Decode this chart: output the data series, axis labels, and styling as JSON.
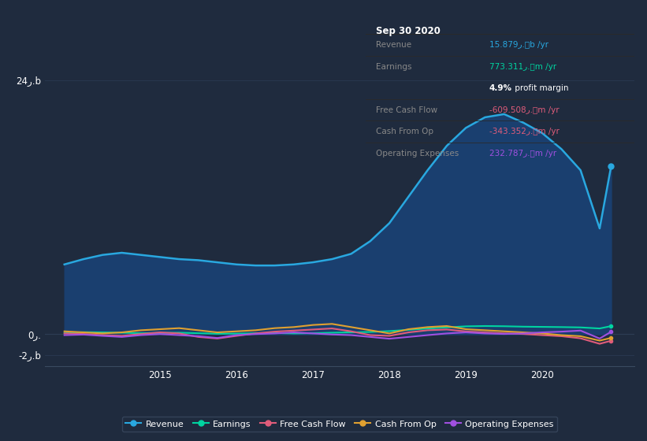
{
  "background_color": "#1f2b3e",
  "plot_bg_color": "#1f2b3e",
  "grid_color": "#2a3a52",
  "ylim": [
    -3000000000,
    27000000000
  ],
  "xlim": [
    2013.5,
    2021.2
  ],
  "xticks": [
    2015,
    2016,
    2017,
    2018,
    2019,
    2020
  ],
  "ytick_values": [
    -2000000000,
    0,
    24000000000
  ],
  "ytick_labels": [
    "-2ر.b",
    "0ر.",
    "24ر.b"
  ],
  "series": {
    "Revenue": {
      "color": "#29a8e0",
      "fill_color": "#1a3f6f",
      "linewidth": 1.8,
      "x": [
        2013.75,
        2014.0,
        2014.25,
        2014.5,
        2014.75,
        2015.0,
        2015.25,
        2015.5,
        2015.75,
        2016.0,
        2016.25,
        2016.5,
        2016.75,
        2017.0,
        2017.25,
        2017.5,
        2017.75,
        2018.0,
        2018.25,
        2018.5,
        2018.75,
        2019.0,
        2019.25,
        2019.5,
        2019.75,
        2020.0,
        2020.25,
        2020.5,
        2020.75,
        2020.9
      ],
      "y": [
        6600000000,
        7100000000,
        7500000000,
        7700000000,
        7500000000,
        7300000000,
        7100000000,
        7000000000,
        6800000000,
        6600000000,
        6500000000,
        6500000000,
        6600000000,
        6800000000,
        7100000000,
        7600000000,
        8800000000,
        10500000000,
        13000000000,
        15500000000,
        17800000000,
        19500000000,
        20500000000,
        20800000000,
        20000000000,
        19000000000,
        17500000000,
        15500000000,
        10000000000,
        15879000000
      ]
    },
    "Earnings": {
      "color": "#00d4a0",
      "linewidth": 1.5,
      "x": [
        2013.75,
        2014.0,
        2014.25,
        2014.5,
        2014.75,
        2015.0,
        2015.25,
        2015.5,
        2015.75,
        2016.0,
        2016.25,
        2016.5,
        2016.75,
        2017.0,
        2017.25,
        2017.5,
        2017.75,
        2018.0,
        2018.25,
        2018.5,
        2018.75,
        2019.0,
        2019.25,
        2019.5,
        2019.75,
        2020.0,
        2020.25,
        2020.5,
        2020.75,
        2020.9
      ],
      "y": [
        150000000,
        200000000,
        180000000,
        150000000,
        100000000,
        130000000,
        150000000,
        100000000,
        50000000,
        60000000,
        100000000,
        120000000,
        80000000,
        100000000,
        150000000,
        180000000,
        220000000,
        300000000,
        420000000,
        550000000,
        650000000,
        750000000,
        780000000,
        760000000,
        720000000,
        700000000,
        680000000,
        650000000,
        550000000,
        773311000
      ]
    },
    "Free Cash Flow": {
      "color": "#e05c7a",
      "linewidth": 1.5,
      "x": [
        2013.75,
        2014.0,
        2014.25,
        2014.5,
        2014.75,
        2015.0,
        2015.25,
        2015.5,
        2015.75,
        2016.0,
        2016.25,
        2016.5,
        2016.75,
        2017.0,
        2017.25,
        2017.5,
        2017.75,
        2018.0,
        2018.25,
        2018.5,
        2018.75,
        2019.0,
        2019.25,
        2019.5,
        2019.75,
        2020.0,
        2020.25,
        2020.5,
        2020.75,
        2020.9
      ],
      "y": [
        80000000,
        30000000,
        -80000000,
        -150000000,
        20000000,
        180000000,
        80000000,
        -250000000,
        -400000000,
        -150000000,
        80000000,
        250000000,
        350000000,
        450000000,
        550000000,
        280000000,
        -80000000,
        -150000000,
        180000000,
        380000000,
        450000000,
        270000000,
        170000000,
        80000000,
        30000000,
        -80000000,
        -180000000,
        -380000000,
        -900000000,
        -609508000
      ]
    },
    "Cash From Op": {
      "color": "#e0a030",
      "linewidth": 1.5,
      "x": [
        2013.75,
        2014.0,
        2014.25,
        2014.5,
        2014.75,
        2015.0,
        2015.25,
        2015.5,
        2015.75,
        2016.0,
        2016.25,
        2016.5,
        2016.75,
        2017.0,
        2017.25,
        2017.5,
        2017.75,
        2018.0,
        2018.25,
        2018.5,
        2018.75,
        2019.0,
        2019.25,
        2019.5,
        2019.75,
        2020.0,
        2020.25,
        2020.5,
        2020.75,
        2020.9
      ],
      "y": [
        280000000,
        180000000,
        80000000,
        180000000,
        380000000,
        480000000,
        580000000,
        380000000,
        180000000,
        280000000,
        380000000,
        580000000,
        680000000,
        880000000,
        980000000,
        680000000,
        380000000,
        80000000,
        480000000,
        680000000,
        780000000,
        480000000,
        380000000,
        280000000,
        180000000,
        80000000,
        -80000000,
        -180000000,
        -600000000,
        -343352000
      ]
    },
    "Operating Expenses": {
      "color": "#a050e0",
      "linewidth": 1.5,
      "x": [
        2013.75,
        2014.0,
        2014.25,
        2014.5,
        2014.75,
        2015.0,
        2015.25,
        2015.5,
        2015.75,
        2016.0,
        2016.25,
        2016.5,
        2016.75,
        2017.0,
        2017.25,
        2017.5,
        2017.75,
        2018.0,
        2018.25,
        2018.5,
        2018.75,
        2019.0,
        2019.25,
        2019.5,
        2019.75,
        2020.0,
        2020.25,
        2020.5,
        2020.75,
        2020.9
      ],
      "y": [
        -80000000,
        -30000000,
        -150000000,
        -250000000,
        -80000000,
        20000000,
        -80000000,
        -180000000,
        -350000000,
        -80000000,
        20000000,
        80000000,
        180000000,
        80000000,
        -20000000,
        -80000000,
        -250000000,
        -420000000,
        -250000000,
        -80000000,
        80000000,
        180000000,
        80000000,
        30000000,
        80000000,
        180000000,
        250000000,
        350000000,
        -400000000,
        232787000
      ]
    }
  },
  "info_box": {
    "date": "Sep 30 2020",
    "rows": [
      {
        "label": "Revenue",
        "value": "15.879ر.؀b /yr",
        "value_color": "#29a8e0",
        "separator_above": true
      },
      {
        "label": "Earnings",
        "value": "773.311ر.؀m /yr",
        "value_color": "#00d4a0",
        "separator_above": true
      },
      {
        "label": "",
        "value": "4.9% profit margin",
        "value_color": "#ffffff",
        "bold_pct": "4.9%",
        "separator_above": false
      },
      {
        "label": "Free Cash Flow",
        "value": "-609.508ر.؀m /yr",
        "value_color": "#e05c7a",
        "separator_above": true
      },
      {
        "label": "Cash From Op",
        "value": "-343.352ر.؀m /yr",
        "value_color": "#e05c7a",
        "separator_above": true
      },
      {
        "label": "Operating Expenses",
        "value": "232.787ر.؀m /yr",
        "value_color": "#a050e0",
        "separator_above": true
      }
    ]
  },
  "legend": [
    {
      "label": "Revenue",
      "color": "#29a8e0"
    },
    {
      "label": "Earnings",
      "color": "#00d4a0"
    },
    {
      "label": "Free Cash Flow",
      "color": "#e05c7a"
    },
    {
      "label": "Cash From Op",
      "color": "#e0a030"
    },
    {
      "label": "Operating Expenses",
      "color": "#a050e0"
    }
  ]
}
